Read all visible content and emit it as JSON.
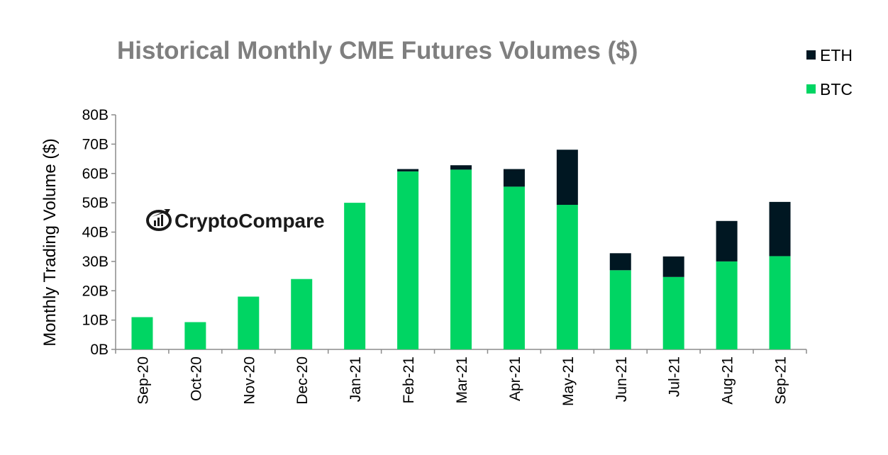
{
  "chart_data": {
    "type": "bar",
    "stacked": true,
    "title": "Historical Monthly CME Futures Volumes ($)",
    "xlabel": "",
    "ylabel": "Monthly Trading Volume ($)",
    "ylim": [
      0,
      80
    ],
    "yticks": [
      0,
      10,
      20,
      30,
      40,
      50,
      60,
      70,
      80
    ],
    "ytick_labels": [
      "0B",
      "10B",
      "20B",
      "30B",
      "40B",
      "50B",
      "60B",
      "70B",
      "80B"
    ],
    "grid": false,
    "legend_position": "top-right",
    "categories": [
      "Sep-20",
      "Oct-20",
      "Nov-20",
      "Dec-20",
      "Jan-21",
      "Feb-21",
      "Mar-21",
      "Apr-21",
      "May-21",
      "Jun-21",
      "Jul-21",
      "Aug-21",
      "Sep-21"
    ],
    "series": [
      {
        "name": "BTC",
        "color": "#00d563",
        "values": [
          11,
          9.3,
          18,
          24,
          50,
          60.7,
          61.3,
          55.5,
          49.3,
          27,
          24.7,
          30,
          31.8
        ]
      },
      {
        "name": "ETH",
        "color": "#001722",
        "values": [
          0,
          0,
          0,
          0,
          0,
          0.8,
          1.5,
          6,
          18.8,
          5.8,
          7,
          13.8,
          18.5
        ]
      }
    ],
    "legend": [
      "ETH",
      "BTC"
    ]
  },
  "watermark": {
    "brand": "CryptoCompare",
    "icon": "cryptocompare-logo-icon"
  }
}
